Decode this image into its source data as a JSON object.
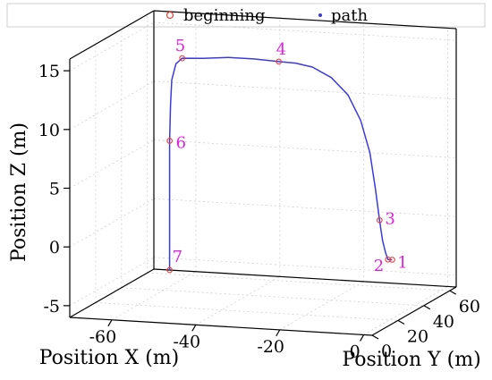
{
  "chart_data": {
    "type": "line",
    "projection": "3d",
    "legend": {
      "placement": "top",
      "entries": [
        {
          "label": "beginning",
          "marker": "open-circle",
          "color": "#e8403a"
        },
        {
          "label": "path",
          "marker": "dot",
          "color": "#3b3bdc"
        }
      ]
    },
    "axes": {
      "x": {
        "label": "Position X (m)",
        "ticks": [
          -60,
          -40,
          -20,
          0
        ],
        "range": [
          -70,
          2
        ]
      },
      "y": {
        "label": "Position Y (m)",
        "ticks": [
          0,
          20,
          40,
          60
        ],
        "range": [
          0,
          65
        ]
      },
      "z": {
        "label": "Position Z (m)",
        "ticks": [
          -5,
          0,
          5,
          10,
          15
        ],
        "range": [
          -6,
          16
        ]
      }
    },
    "grid": true,
    "colors": {
      "path": "#3b3bdc",
      "marker": "#e8403a",
      "labels": "#e020e0"
    },
    "waypoints": [
      {
        "label": "1",
        "x": 0,
        "y": 22,
        "z": -1
      },
      {
        "label": "2",
        "x": -1,
        "y": 22,
        "z": -1
      },
      {
        "label": "3",
        "x": -3,
        "y": 22,
        "z": 2.3
      },
      {
        "label": "4",
        "x": -27,
        "y": 22,
        "z": 15.3
      },
      {
        "label": "5",
        "x": -50,
        "y": 22,
        "z": 15.1
      },
      {
        "label": "6",
        "x": -53,
        "y": 22,
        "z": 8
      },
      {
        "label": "7",
        "x": -53,
        "y": 22,
        "z": -3
      }
    ],
    "path": [
      {
        "x": 0,
        "y": 22,
        "z": -1
      },
      {
        "x": -1,
        "y": 22,
        "z": -1
      },
      {
        "x": -1.6,
        "y": 22,
        "z": -0.4
      },
      {
        "x": -2.3,
        "y": 22,
        "z": 0.6
      },
      {
        "x": -3,
        "y": 22,
        "z": 2.3
      },
      {
        "x": -4,
        "y": 22,
        "z": 5
      },
      {
        "x": -5.3,
        "y": 22,
        "z": 8
      },
      {
        "x": -7.5,
        "y": 22,
        "z": 10.7
      },
      {
        "x": -10.5,
        "y": 22,
        "z": 12.8
      },
      {
        "x": -14.5,
        "y": 22,
        "z": 14.2
      },
      {
        "x": -19,
        "y": 22,
        "z": 15
      },
      {
        "x": -23,
        "y": 22,
        "z": 15.25
      },
      {
        "x": -27,
        "y": 22,
        "z": 15.3
      },
      {
        "x": -33,
        "y": 22,
        "z": 15.4
      },
      {
        "x": -39,
        "y": 22,
        "z": 15.4
      },
      {
        "x": -45,
        "y": 22,
        "z": 15.2
      },
      {
        "x": -50,
        "y": 22,
        "z": 15.1
      },
      {
        "x": -51.5,
        "y": 22,
        "z": 14.6
      },
      {
        "x": -52.5,
        "y": 22,
        "z": 13.2
      },
      {
        "x": -52.8,
        "y": 22,
        "z": 11
      },
      {
        "x": -53,
        "y": 22,
        "z": 8
      },
      {
        "x": -53,
        "y": 22,
        "z": 5.2
      },
      {
        "x": -53,
        "y": 22,
        "z": 2.5
      },
      {
        "x": -53,
        "y": 22,
        "z": 1.8
      },
      {
        "x": -53,
        "y": 22,
        "z": 0
      },
      {
        "x": -53,
        "y": 22,
        "z": -3
      }
    ]
  }
}
